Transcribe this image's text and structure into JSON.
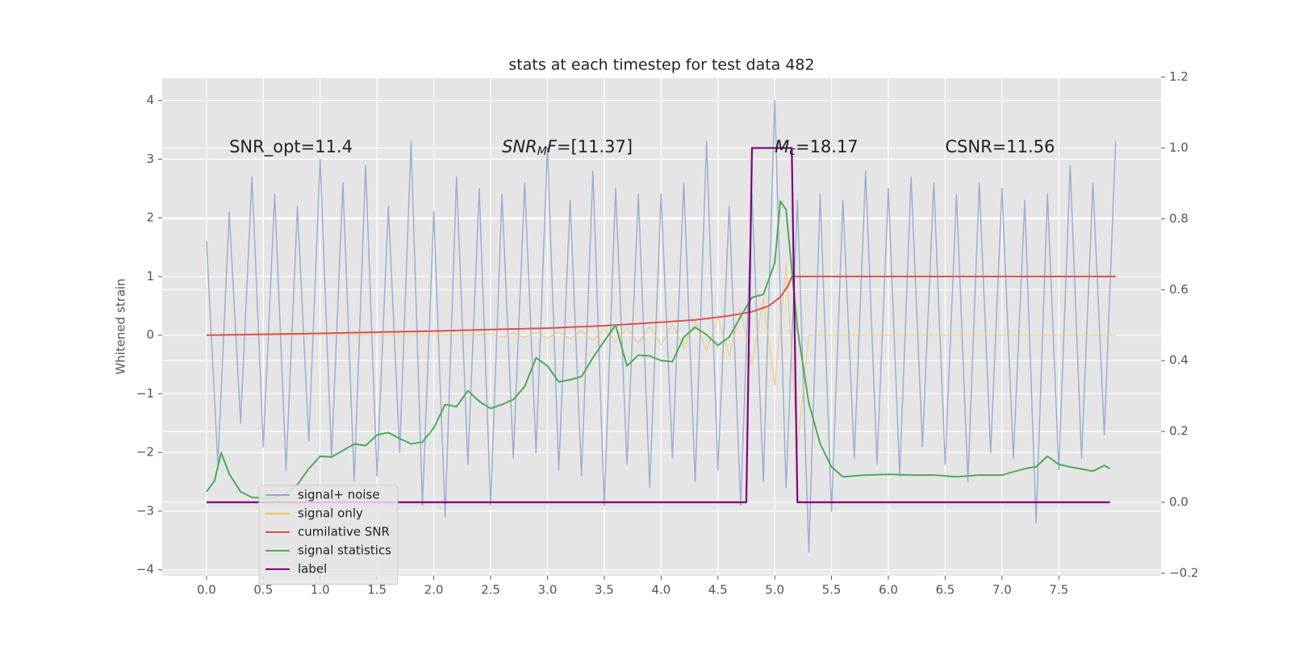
{
  "chart_data": {
    "type": "line",
    "title": "stats at each timestep for test data 482",
    "y_label": "Whitened strain",
    "grid": true,
    "legend": "lower left",
    "xlim": [
      -0.39,
      8.4
    ],
    "ylim": [
      -4.1,
      4.38
    ],
    "y2lim": [
      -0.207,
      1.197
    ],
    "xticks": [
      {
        "value": 0,
        "label": "0.0"
      },
      {
        "value": 0.5,
        "label": "0.5"
      },
      {
        "value": 1,
        "label": "1.0"
      },
      {
        "value": 1.5,
        "label": "1.5"
      },
      {
        "value": 2,
        "label": "2.0"
      },
      {
        "value": 2.5,
        "label": "2.5"
      },
      {
        "value": 3,
        "label": "3.0"
      },
      {
        "value": 3.5,
        "label": "3.5"
      },
      {
        "value": 4,
        "label": "4.0"
      },
      {
        "value": 4.5,
        "label": "4.5"
      },
      {
        "value": 5,
        "label": "5.0"
      },
      {
        "value": 5.5,
        "label": "5.5"
      },
      {
        "value": 6,
        "label": "6.0"
      },
      {
        "value": 6.5,
        "label": "6.5"
      },
      {
        "value": 7,
        "label": "7.0"
      },
      {
        "value": 7.5,
        "label": "7.5"
      }
    ],
    "yticks": [
      {
        "value": -4,
        "label": "−4"
      },
      {
        "value": -3,
        "label": "−3"
      },
      {
        "value": -2,
        "label": "−2"
      },
      {
        "value": -1,
        "label": "−1"
      },
      0,
      1,
      2,
      3,
      4
    ],
    "y2ticks": [
      {
        "value": -0.2,
        "label": "−0.2"
      },
      {
        "value": 0,
        "label": "0.0"
      },
      {
        "value": 0.2,
        "label": "0.2"
      },
      {
        "value": 0.4,
        "label": "0.4"
      },
      {
        "value": 0.6,
        "label": "0.6"
      },
      {
        "value": 0.8,
        "label": "0.8"
      },
      {
        "value": 1,
        "label": "1.0"
      },
      {
        "value": 1.2,
        "label": "1.2"
      }
    ],
    "annotations": [
      [
        {
          "text": "SNR_opt=11.4"
        }
      ],
      [
        {
          "text": "SNR",
          "italic": true
        },
        {
          "text": "M",
          "italic": true,
          "sub": true
        },
        {
          "text": "F",
          "italic": true
        },
        {
          "text": "=[11.37]"
        }
      ],
      [
        {
          "text": "M",
          "italic": true
        },
        {
          "text": "c",
          "italic": true,
          "sub": true
        },
        {
          "text": "=18.17"
        }
      ],
      [
        {
          "text": "CSNR=11.56"
        }
      ]
    ],
    "x": [
      0,
      0.1,
      0.2,
      0.3,
      0.4,
      0.5,
      0.6,
      0.7,
      0.8,
      0.9,
      1,
      1.1,
      1.2,
      1.3,
      1.4,
      1.5,
      1.6,
      1.7,
      1.8,
      1.9,
      2,
      2.1,
      2.2,
      2.3,
      2.4,
      2.5,
      2.6,
      2.7,
      2.8,
      2.9,
      3,
      3.1,
      3.2,
      3.3,
      3.4,
      3.5,
      3.6,
      3.7,
      3.8,
      3.9,
      4,
      4.1,
      4.2,
      4.3,
      4.4,
      4.5,
      4.6,
      4.7,
      4.8,
      4.9,
      5,
      5.1,
      5.2,
      5.3,
      5.4,
      5.5,
      5.6,
      5.7,
      5.8,
      5.9,
      6,
      6.1,
      6.2,
      6.3,
      6.4,
      6.5,
      6.6,
      6.7,
      6.8,
      6.9,
      7,
      7.1,
      7.2,
      7.3,
      7.4,
      7.5,
      7.6,
      7.7,
      7.8,
      7.9,
      8
    ],
    "series": [
      {
        "name": "signal+ noise",
        "color": "#92a8d1",
        "values": [
          1.6,
          -2.2,
          2.1,
          -1.5,
          2.7,
          -1.9,
          2.4,
          -2.3,
          2.2,
          -1.8,
          3.0,
          -2.1,
          2.6,
          -2.5,
          2.9,
          -2.4,
          2.2,
          -2.0,
          3.3,
          -2.9,
          2.1,
          -3.1,
          2.7,
          -2.2,
          2.5,
          -2.9,
          2.4,
          -2.1,
          2.6,
          -2.0,
          3.2,
          -2.3,
          2.3,
          -2.4,
          2.8,
          -2.9,
          2.5,
          -2.2,
          2.4,
          -2.6,
          2.4,
          -2.1,
          2.6,
          -2.5,
          3.3,
          -2.3,
          2.2,
          -2.9,
          2.4,
          -2.5,
          4.0,
          -2.6,
          2.3,
          -3.7,
          2.4,
          -3.0,
          2.3,
          -2.1,
          2.8,
          -2.2,
          2.5,
          -2.4,
          2.7,
          -1.9,
          2.6,
          -2.2,
          2.4,
          -2.5,
          2.6,
          -2.0,
          2.5,
          -2.1,
          2.3,
          -3.2,
          2.4,
          -2.3,
          2.9,
          -2.1,
          2.6,
          -1.7,
          3.3
        ]
      },
      {
        "name": "signal only",
        "color": "#f0c05a",
        "values": [
          0,
          0,
          0,
          0,
          0,
          0,
          0,
          0,
          0,
          0,
          0,
          0,
          0,
          0,
          0,
          0,
          0,
          0,
          0,
          0,
          0,
          0,
          0,
          0,
          0,
          0.02,
          -0.03,
          0.03,
          -0.04,
          0.05,
          -0.05,
          0.06,
          -0.07,
          0.08,
          -0.09,
          0.1,
          -0.11,
          0.12,
          -0.14,
          0.15,
          -0.17,
          0.19,
          -0.21,
          0.24,
          -0.27,
          0.3,
          -0.35,
          0.42,
          -0.5,
          0.62,
          -0.85,
          1.2,
          -1.9,
          0,
          0,
          0,
          0,
          0,
          0,
          0,
          0,
          0,
          0,
          0,
          0,
          0,
          0,
          0,
          0,
          0,
          0,
          0,
          0,
          0,
          0,
          0,
          0,
          0,
          0,
          0,
          0
        ]
      },
      {
        "name": "cumilative SNR",
        "color": "#d9534f",
        "x": [
          0,
          1,
          2,
          3,
          3.5,
          4,
          4.3,
          4.6,
          4.8,
          4.95,
          5.05,
          5.12,
          5.15,
          8
        ],
        "values": [
          0,
          0.03,
          0.07,
          0.12,
          0.16,
          0.22,
          0.26,
          0.33,
          0.4,
          0.5,
          0.65,
          0.85,
          1,
          1
        ]
      },
      {
        "name": "signal statistics",
        "color": "#4daa57",
        "axis": "y2",
        "x": [
          0,
          0.07,
          0.13,
          0.2,
          0.3,
          0.4,
          0.5,
          0.6,
          0.7,
          0.8,
          0.9,
          1,
          1.1,
          1.2,
          1.3,
          1.4,
          1.5,
          1.6,
          1.7,
          1.8,
          1.9,
          2,
          2.1,
          2.2,
          2.3,
          2.4,
          2.5,
          2.6,
          2.7,
          2.8,
          2.9,
          3,
          3.1,
          3.2,
          3.3,
          3.4,
          3.5,
          3.6,
          3.7,
          3.8,
          3.9,
          4,
          4.1,
          4.2,
          4.3,
          4.4,
          4.5,
          4.6,
          4.7,
          4.8,
          4.9,
          5,
          5.05,
          5.1,
          5.2,
          5.3,
          5.4,
          5.5,
          5.6,
          5.8,
          6,
          6.2,
          6.4,
          6.6,
          6.8,
          7,
          7.2,
          7.3,
          7.4,
          7.5,
          7.6,
          7.8,
          7.9,
          7.95
        ],
        "values": [
          0.03,
          0.06,
          0.14,
          0.08,
          0.03,
          0.014,
          0.012,
          0.014,
          0.025,
          0.05,
          0.095,
          0.13,
          0.128,
          0.146,
          0.165,
          0.16,
          0.19,
          0.197,
          0.18,
          0.165,
          0.17,
          0.21,
          0.276,
          0.27,
          0.315,
          0.285,
          0.265,
          0.276,
          0.29,
          0.327,
          0.408,
          0.385,
          0.34,
          0.346,
          0.355,
          0.408,
          0.455,
          0.5,
          0.385,
          0.415,
          0.413,
          0.4,
          0.397,
          0.466,
          0.494,
          0.473,
          0.443,
          0.466,
          0.524,
          0.578,
          0.587,
          0.675,
          0.85,
          0.826,
          0.49,
          0.28,
          0.165,
          0.1,
          0.072,
          0.077,
          0.079,
          0.077,
          0.077,
          0.072,
          0.077,
          0.077,
          0.095,
          0.1,
          0.13,
          0.107,
          0.1,
          0.088,
          0.104,
          0.095
        ]
      },
      {
        "name": "label",
        "color": "#800080",
        "axis": "y2",
        "x": [
          0,
          4.75,
          4.8,
          5.15,
          5.2,
          7.95
        ],
        "values": [
          0,
          0,
          1,
          1,
          0,
          0
        ]
      }
    ]
  }
}
